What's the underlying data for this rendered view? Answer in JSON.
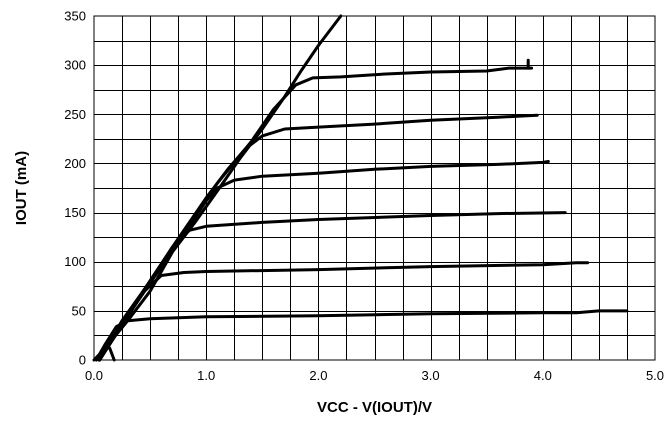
{
  "chart_data": {
    "type": "line",
    "title": "",
    "xlabel": "VCC - V(IOUT)/V",
    "ylabel": "IOUT (mA)",
    "xlim": [
      0,
      5
    ],
    "ylim": [
      0,
      350
    ],
    "x_ticks": [
      "0.0",
      "1.0",
      "2.0",
      "3.0",
      "4.0",
      "5.0"
    ],
    "y_ticks": [
      "0",
      "50",
      "100",
      "150",
      "200",
      "250",
      "300",
      "350"
    ],
    "grid": true,
    "x_minor_step": 0.25,
    "y_minor_step": 25,
    "line_color": "#000000",
    "series": [
      {
        "points": [
          [
            0.0,
            0
          ],
          [
            0.1,
            12
          ],
          [
            0.2,
            26
          ],
          [
            0.3,
            40
          ],
          [
            0.5,
            70
          ],
          [
            0.7,
            110
          ],
          [
            0.9,
            140
          ],
          [
            1.1,
            172
          ],
          [
            1.3,
            205
          ],
          [
            1.5,
            235
          ],
          [
            1.7,
            268
          ],
          [
            1.85,
            295
          ],
          [
            2.0,
            320
          ],
          [
            2.2,
            350
          ]
        ]
      },
      {
        "points": [
          [
            0.02,
            0
          ],
          [
            0.1,
            16
          ],
          [
            0.2,
            34
          ],
          [
            0.3,
            40
          ],
          [
            0.5,
            42
          ],
          [
            1.0,
            44
          ],
          [
            2.0,
            45
          ],
          [
            3.0,
            47
          ],
          [
            4.0,
            48
          ],
          [
            4.3,
            48
          ],
          [
            4.5,
            50
          ],
          [
            4.75,
            50
          ]
        ]
      },
      {
        "points": [
          [
            0.04,
            0
          ],
          [
            0.15,
            20
          ],
          [
            0.3,
            45
          ],
          [
            0.45,
            70
          ],
          [
            0.6,
            86
          ],
          [
            0.8,
            89
          ],
          [
            1.0,
            90
          ],
          [
            2.0,
            92
          ],
          [
            3.0,
            95
          ],
          [
            4.0,
            97
          ],
          [
            4.3,
            99
          ],
          [
            4.4,
            99
          ]
        ]
      },
      {
        "points": [
          [
            0.05,
            0
          ],
          [
            0.25,
            40
          ],
          [
            0.5,
            80
          ],
          [
            0.7,
            115
          ],
          [
            0.85,
            132
          ],
          [
            1.0,
            136
          ],
          [
            1.5,
            140
          ],
          [
            2.0,
            143
          ],
          [
            3.0,
            147
          ],
          [
            3.6,
            149
          ],
          [
            4.2,
            150
          ]
        ]
      },
      {
        "points": [
          [
            0.05,
            0
          ],
          [
            0.3,
            45
          ],
          [
            0.6,
            95
          ],
          [
            0.9,
            145
          ],
          [
            1.0,
            162
          ],
          [
            1.1,
            175
          ],
          [
            1.25,
            183
          ],
          [
            1.5,
            187
          ],
          [
            2.0,
            190
          ],
          [
            2.5,
            194
          ],
          [
            3.0,
            197
          ],
          [
            3.6,
            199
          ],
          [
            4.0,
            201
          ],
          [
            4.05,
            202
          ]
        ]
      },
      {
        "points": [
          [
            0.05,
            0
          ],
          [
            0.35,
            55
          ],
          [
            0.7,
            115
          ],
          [
            1.0,
            165
          ],
          [
            1.2,
            195
          ],
          [
            1.35,
            215
          ],
          [
            1.5,
            228
          ],
          [
            1.7,
            235
          ],
          [
            2.0,
            237
          ],
          [
            2.5,
            240
          ],
          [
            3.0,
            244
          ],
          [
            3.6,
            247
          ],
          [
            3.95,
            249
          ]
        ]
      },
      {
        "points": [
          [
            0.05,
            0
          ],
          [
            0.4,
            62
          ],
          [
            0.8,
            128
          ],
          [
            1.1,
            180
          ],
          [
            1.4,
            222
          ],
          [
            1.6,
            255
          ],
          [
            1.8,
            280
          ],
          [
            1.95,
            287
          ],
          [
            2.2,
            288
          ],
          [
            2.6,
            291
          ],
          [
            3.0,
            293
          ],
          [
            3.5,
            294
          ],
          [
            3.7,
            297
          ],
          [
            3.9,
            297
          ]
        ]
      }
    ],
    "annotations": [
      {
        "points": [
          [
            3.87,
            305
          ],
          [
            3.87,
            297
          ]
        ]
      },
      {
        "points": [
          [
            0.14,
            12
          ],
          [
            0.18,
            0
          ]
        ]
      }
    ]
  }
}
